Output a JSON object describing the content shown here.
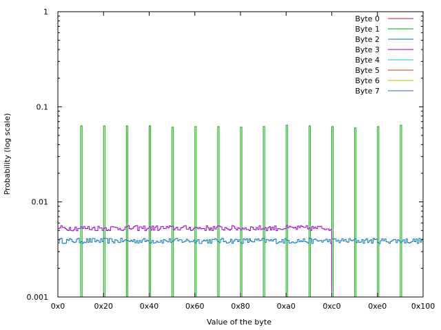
{
  "chart_data": {
    "type": "line",
    "step": true,
    "title": "",
    "xlabel": "Value of the byte",
    "ylabel": "Probability (log scale)",
    "xlim": [
      0,
      256
    ],
    "ylim": [
      0.001,
      1
    ],
    "ylog": true,
    "grid": false,
    "legend_position": "top-right",
    "x_ticks": [
      {
        "value": 0,
        "label": "0x0"
      },
      {
        "value": 32,
        "label": "0x20"
      },
      {
        "value": 64,
        "label": "0x40"
      },
      {
        "value": 96,
        "label": "0x60"
      },
      {
        "value": 128,
        "label": "0x80"
      },
      {
        "value": 160,
        "label": "0xa0"
      },
      {
        "value": 192,
        "label": "0xc0"
      },
      {
        "value": 224,
        "label": "0xe0"
      },
      {
        "value": 256,
        "label": "0x100"
      }
    ],
    "y_ticks": [
      {
        "value": 0.001,
        "label": "0.001"
      },
      {
        "value": 0.01,
        "label": "0.01"
      },
      {
        "value": 0.1,
        "label": "0.1"
      },
      {
        "value": 1,
        "label": "1"
      }
    ],
    "series": [
      {
        "name": "Byte 0",
        "color": "#b22222",
        "spikes": [],
        "band": null
      },
      {
        "name": "Byte 1",
        "color": "#00aa00",
        "spikes": [
          {
            "x": 16,
            "y": 0.063
          },
          {
            "x": 32,
            "y": 0.063
          },
          {
            "x": 48,
            "y": 0.063
          },
          {
            "x": 64,
            "y": 0.063
          },
          {
            "x": 80,
            "y": 0.061
          },
          {
            "x": 96,
            "y": 0.062
          },
          {
            "x": 112,
            "y": 0.062
          },
          {
            "x": 128,
            "y": 0.061
          },
          {
            "x": 144,
            "y": 0.062
          },
          {
            "x": 160,
            "y": 0.064
          },
          {
            "x": 176,
            "y": 0.063
          },
          {
            "x": 192,
            "y": 0.062
          },
          {
            "x": 208,
            "y": 0.06
          },
          {
            "x": 224,
            "y": 0.062
          },
          {
            "x": 240,
            "y": 0.064
          }
        ],
        "band": null
      },
      {
        "name": "Byte 2",
        "color": "#0077bb",
        "spikes": [],
        "band": {
          "from": 0,
          "to": 256,
          "level": 0.0039
        }
      },
      {
        "name": "Byte 3",
        "color": "#9900cc",
        "spikes": [],
        "band": {
          "from": 0,
          "to": 192,
          "level": 0.0053
        }
      },
      {
        "name": "Byte 4",
        "color": "#00cccc",
        "spikes": [],
        "band": null
      },
      {
        "name": "Byte 5",
        "color": "#cc4400",
        "spikes": [],
        "band": null
      },
      {
        "name": "Byte 6",
        "color": "#bbbb00",
        "spikes": [],
        "band": null
      },
      {
        "name": "Byte 7",
        "color": "#3366dd",
        "spikes": [],
        "band": null
      }
    ]
  }
}
